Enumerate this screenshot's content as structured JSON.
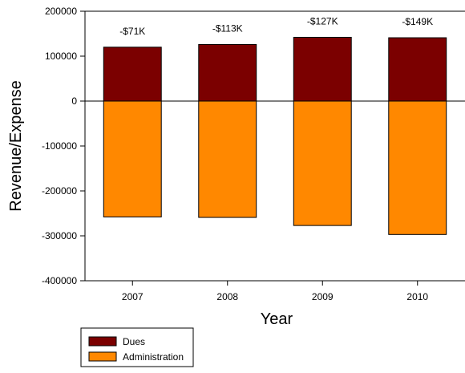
{
  "chart_data": {
    "type": "bar",
    "stacked": "diverging",
    "categories": [
      "2007",
      "2008",
      "2009",
      "2010"
    ],
    "series": [
      {
        "name": "Dues",
        "values": [
          120000,
          126000,
          142000,
          141000
        ],
        "color": "#7b0000"
      },
      {
        "name": "Administration",
        "values": [
          -258000,
          -259000,
          -277000,
          -297000
        ],
        "color": "#ff8800"
      }
    ],
    "bar_labels": [
      "-$71K",
      "-$113K",
      "-$127K",
      "-$149K"
    ],
    "xlabel": "Year",
    "ylabel": "Revenue/Expense",
    "ylim": [
      -400000,
      200000
    ],
    "yticks": [
      200000,
      100000,
      0,
      -100000,
      -200000,
      -300000,
      -400000
    ],
    "ytick_labels": [
      "200000",
      "100000",
      "0",
      "-100000",
      "-200000",
      "-300000",
      "-400000"
    ],
    "grid": false,
    "legend_position": "bottom-left"
  }
}
